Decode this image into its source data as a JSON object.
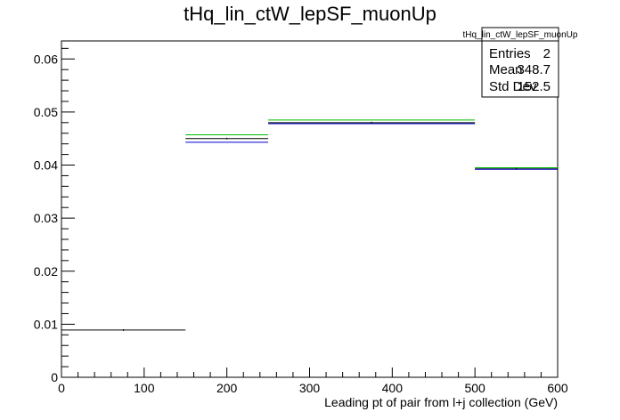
{
  "chart_data": {
    "type": "step",
    "title": "tHq_lin_ctW_lepSF_muonUp",
    "xlabel": "Leading pt of pair from l+j collection (GeV)",
    "ylabel": "",
    "xlim": [
      0,
      600
    ],
    "ylim": [
      0,
      0.0634
    ],
    "x_ticks": [
      0,
      100,
      200,
      300,
      400,
      500,
      600
    ],
    "x_tick_labels": [
      "0",
      "100",
      "200",
      "300",
      "400",
      "500",
      "600"
    ],
    "y_ticks": [
      0,
      0.01,
      0.02,
      0.03,
      0.04,
      0.05,
      0.06
    ],
    "y_tick_labels": [
      "0",
      "0.01",
      "0.02",
      "0.03",
      "0.04",
      "0.05",
      "0.06"
    ],
    "bin_edges": [
      0,
      150,
      250,
      500,
      600
    ],
    "grid": false,
    "series": [
      {
        "color": "#000000",
        "values": [
          0.0089,
          0.045,
          0.048,
          0.0393
        ]
      },
      {
        "color": "#0000cc",
        "values": [
          null,
          0.0443,
          0.0478,
          0.0392
        ]
      },
      {
        "color": "#00bb00",
        "values": [
          null,
          0.0457,
          0.0485,
          0.0395
        ]
      }
    ],
    "stats_box": {
      "name": "tHq_lin_ctW_lepSF_muonUp",
      "rows": [
        {
          "label": "Entries",
          "value": "2"
        },
        {
          "label": "Mean",
          "value": "348.7"
        },
        {
          "label": "Std Dev",
          "value": "152.5"
        }
      ]
    }
  }
}
